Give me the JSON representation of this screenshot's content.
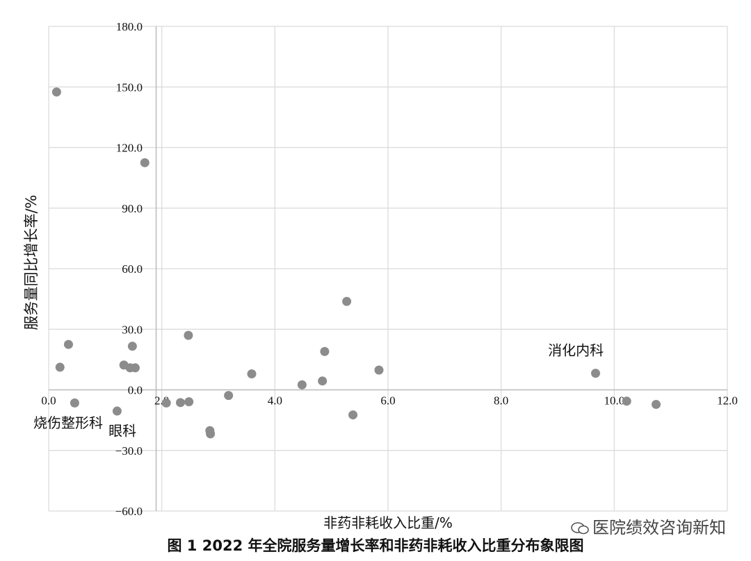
{
  "chart_data": {
    "type": "scatter",
    "title": "",
    "xlabel": "非药非耗收入比重/%",
    "ylabel": "服务量同比增长率/%",
    "xlim": [
      0,
      12
    ],
    "ylim": [
      -60,
      180
    ],
    "x_ticks": [
      0,
      2,
      4,
      6,
      8,
      10,
      12
    ],
    "y_ticks": [
      -60,
      -30,
      0,
      30,
      60,
      90,
      120,
      150,
      180
    ],
    "x_tick_labels": [
      "0.0",
      "2.0",
      "4.0",
      "6.0",
      "8.0",
      "10.0",
      "12.0"
    ],
    "y_tick_labels": [
      "−60.0",
      "−30.0",
      "0.0",
      "30.0",
      "60.0",
      "90.0",
      "120.0",
      "150.0",
      "180.0"
    ],
    "grid": true,
    "reference_lines": {
      "x": 1.9,
      "y": 0
    },
    "marker_color": "#8c8c8c",
    "points": [
      {
        "x": 0.14,
        "y": 147.5
      },
      {
        "x": 0.2,
        "y": 11.2
      },
      {
        "x": 0.35,
        "y": 22.5
      },
      {
        "x": 0.46,
        "y": -6.5
      },
      {
        "x": 1.21,
        "y": -10.5
      },
      {
        "x": 1.33,
        "y": 12.3
      },
      {
        "x": 1.44,
        "y": 10.9
      },
      {
        "x": 1.48,
        "y": 21.6
      },
      {
        "x": 1.53,
        "y": 10.9
      },
      {
        "x": 1.7,
        "y": 112.5
      },
      {
        "x": 2.08,
        "y": -6.5
      },
      {
        "x": 2.33,
        "y": -6.3
      },
      {
        "x": 2.47,
        "y": 27.0
      },
      {
        "x": 2.48,
        "y": -5.9
      },
      {
        "x": 2.85,
        "y": -20.2
      },
      {
        "x": 2.86,
        "y": -21.8
      },
      {
        "x": 3.18,
        "y": -2.8
      },
      {
        "x": 3.59,
        "y": 7.9
      },
      {
        "x": 4.48,
        "y": 2.5
      },
      {
        "x": 4.84,
        "y": 4.4
      },
      {
        "x": 4.88,
        "y": 19.0
      },
      {
        "x": 5.27,
        "y": 43.8
      },
      {
        "x": 5.38,
        "y": -12.4
      },
      {
        "x": 5.84,
        "y": 9.8
      },
      {
        "x": 9.67,
        "y": 8.2
      },
      {
        "x": 10.22,
        "y": -5.6
      },
      {
        "x": 10.74,
        "y": -7.2
      }
    ],
    "annotations": [
      {
        "text": "烧伤整形科",
        "x": 0.0,
        "y": -16
      },
      {
        "text": "眼科",
        "x": 1.33,
        "y": -20
      },
      {
        "text": "消化内科",
        "x": 9.1,
        "y": 20
      }
    ]
  },
  "caption": "图 1   2022 年全院服务量增长率和非药非耗收入比重分布象限图",
  "watermark": "医院绩效咨询新知"
}
